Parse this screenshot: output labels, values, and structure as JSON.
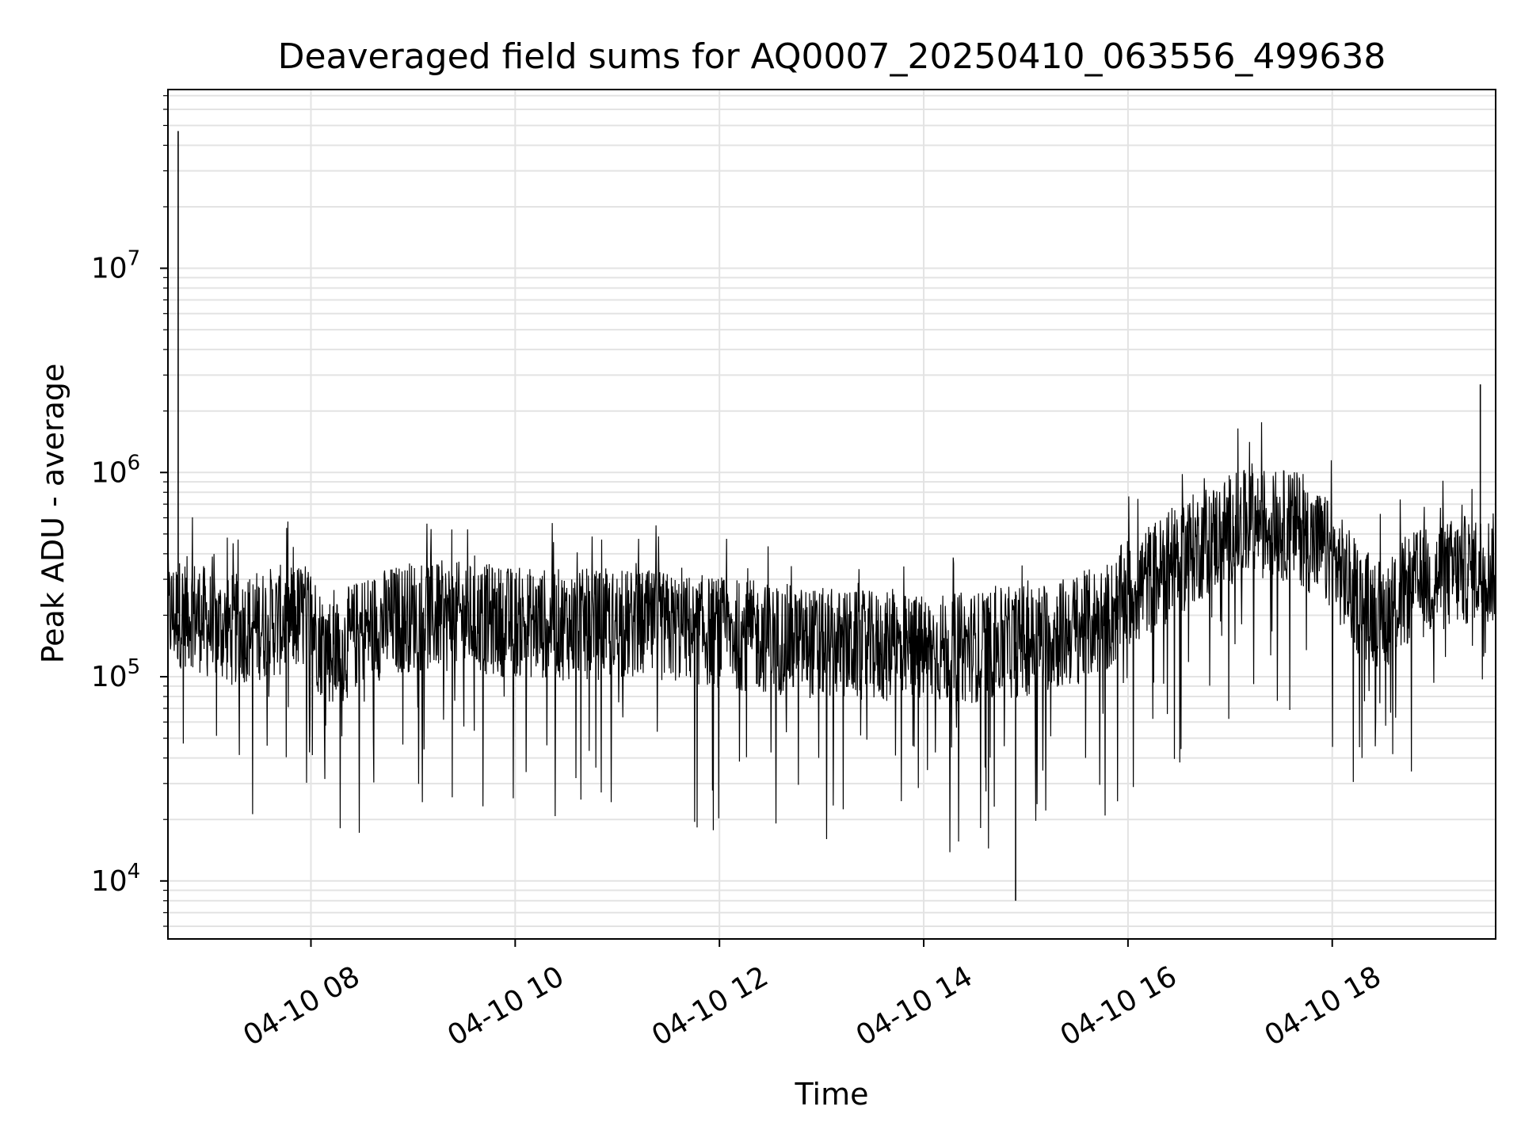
{
  "chart_data": {
    "type": "line",
    "title": "Deaveraged field sums for AQ0007_20250410_063556_499638",
    "xlabel": "Time",
    "ylabel": "Peak ADU - average",
    "x_scale": "time",
    "y_scale": "log",
    "xlim": [
      "2025-04-10 06:36",
      "2025-04-10 19:36"
    ],
    "ylim": [
      5200,
      75000000
    ],
    "x_tick_labels": [
      "04-10 08",
      "04-10 10",
      "04-10 12",
      "04-10 14",
      "04-10 16",
      "04-10 18"
    ],
    "y_tick_labels": [
      {
        "base": "10",
        "exp": "4"
      },
      {
        "base": "10",
        "exp": "5"
      },
      {
        "base": "10",
        "exp": "6"
      },
      {
        "base": "10",
        "exp": "7"
      }
    ],
    "grid": true,
    "line_color": "#000000",
    "grid_color": "#e3e3e3",
    "series": [
      {
        "x": [
          "2025-04-10 06:36",
          "2025-04-10 06:50",
          "2025-04-10 07:00",
          "2025-04-10 07:15",
          "2025-04-10 07:30",
          "2025-04-10 07:45",
          "2025-04-10 08:00",
          "2025-04-10 08:05",
          "2025-04-10 08:15",
          "2025-04-10 08:30",
          "2025-04-10 09:00",
          "2025-04-10 09:30",
          "2025-04-10 10:00",
          "2025-04-10 10:30",
          "2025-04-10 11:00",
          "2025-04-10 11:30",
          "2025-04-10 12:00",
          "2025-04-10 12:30",
          "2025-04-10 13:00",
          "2025-04-10 13:30",
          "2025-04-10 14:00",
          "2025-04-10 14:30",
          "2025-04-10 15:00",
          "2025-04-10 15:30",
          "2025-04-10 15:50",
          "2025-04-10 16:00",
          "2025-04-10 16:20",
          "2025-04-10 16:40",
          "2025-04-10 17:00",
          "2025-04-10 17:20",
          "2025-04-10 17:40",
          "2025-04-10 18:00",
          "2025-04-10 18:15",
          "2025-04-10 18:30",
          "2025-04-10 18:45",
          "2025-04-10 19:00",
          "2025-04-10 19:15",
          "2025-04-10 19:36"
        ],
        "y": [
          200000,
          210000,
          180000,
          170000,
          180000,
          190000,
          200000,
          150000,
          130000,
          170000,
          200000,
          195000,
          185000,
          180000,
          180000,
          175000,
          165000,
          155000,
          145000,
          140000,
          135000,
          140000,
          150000,
          170000,
          200000,
          260000,
          330000,
          430000,
          530000,
          570000,
          540000,
          380000,
          240000,
          200000,
          270000,
          300000,
          330000,
          340000
        ]
      }
    ],
    "annotations": [
      {
        "x": "2025-04-10 06:42",
        "y": 47000000,
        "label": ""
      },
      {
        "x": "2025-04-10 19:27",
        "y": 2700000,
        "label": ""
      },
      {
        "x": "2025-04-10 14:54",
        "y": 8000,
        "label": ""
      }
    ]
  }
}
